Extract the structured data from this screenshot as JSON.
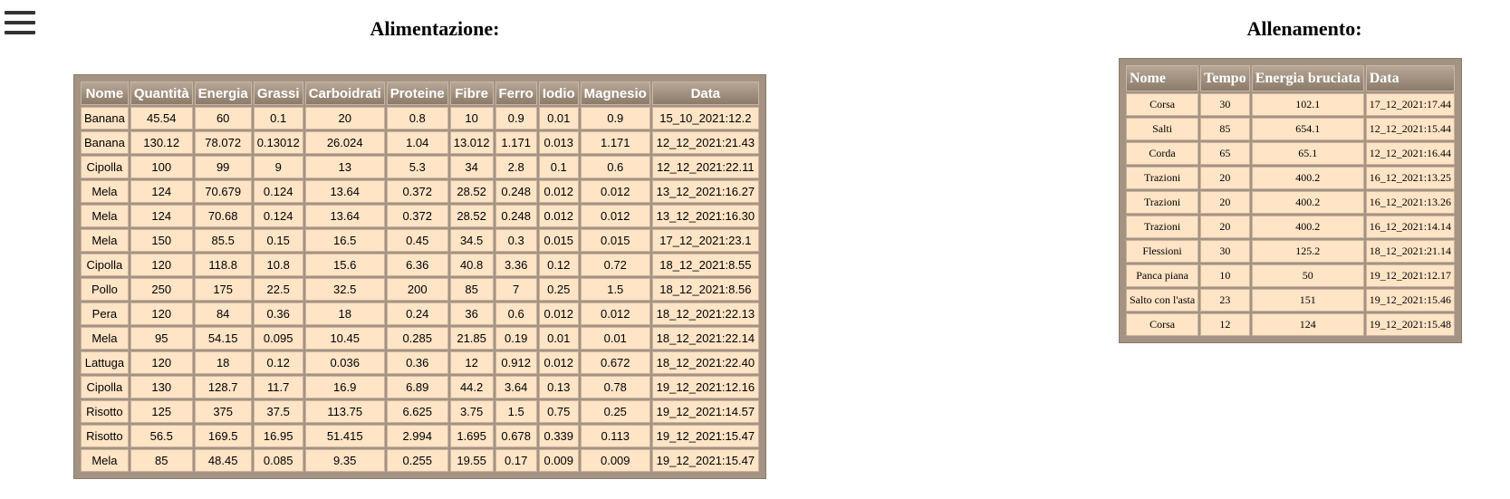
{
  "menu": {
    "icon": "hamburger-menu-icon"
  },
  "alimentazione": {
    "title": "Alimentazione:",
    "headers": [
      "Nome",
      "Quantità",
      "Energia",
      "Grassi",
      "Carboidrati",
      "Proteine",
      "Fibre",
      "Ferro",
      "Iodio",
      "Magnesio",
      "Data"
    ],
    "rows": [
      [
        "Banana",
        "45.54",
        "60",
        "0.1",
        "20",
        "0.8",
        "10",
        "0.9",
        "0.01",
        "0.9",
        "15_10_2021:12.2"
      ],
      [
        "Banana",
        "130.12",
        "78.072",
        "0.13012",
        "26.024",
        "1.04",
        "13.012",
        "1.171",
        "0.013",
        "1.171",
        "12_12_2021:21.43"
      ],
      [
        "Cipolla",
        "100",
        "99",
        "9",
        "13",
        "5.3",
        "34",
        "2.8",
        "0.1",
        "0.6",
        "12_12_2021:22.11"
      ],
      [
        "Mela",
        "124",
        "70.679",
        "0.124",
        "13.64",
        "0.372",
        "28.52",
        "0.248",
        "0.012",
        "0.012",
        "13_12_2021:16.27"
      ],
      [
        "Mela",
        "124",
        "70.68",
        "0.124",
        "13.64",
        "0.372",
        "28.52",
        "0.248",
        "0.012",
        "0.012",
        "13_12_2021:16.30"
      ],
      [
        "Mela",
        "150",
        "85.5",
        "0.15",
        "16.5",
        "0.45",
        "34.5",
        "0.3",
        "0.015",
        "0.015",
        "17_12_2021:23.1"
      ],
      [
        "Cipolla",
        "120",
        "118.8",
        "10.8",
        "15.6",
        "6.36",
        "40.8",
        "3.36",
        "0.12",
        "0.72",
        "18_12_2021:8.55"
      ],
      [
        "Pollo",
        "250",
        "175",
        "22.5",
        "32.5",
        "200",
        "85",
        "7",
        "0.25",
        "1.5",
        "18_12_2021:8.56"
      ],
      [
        "Pera",
        "120",
        "84",
        "0.36",
        "18",
        "0.24",
        "36",
        "0.6",
        "0.012",
        "0.012",
        "18_12_2021:22.13"
      ],
      [
        "Mela",
        "95",
        "54.15",
        "0.095",
        "10.45",
        "0.285",
        "21.85",
        "0.19",
        "0.01",
        "0.01",
        "18_12_2021:22.14"
      ],
      [
        "Lattuga",
        "120",
        "18",
        "0.12",
        "0.036",
        "0.36",
        "12",
        "0.912",
        "0.012",
        "0.672",
        "18_12_2021:22.40"
      ],
      [
        "Cipolla",
        "130",
        "128.7",
        "11.7",
        "16.9",
        "6.89",
        "44.2",
        "3.64",
        "0.13",
        "0.78",
        "19_12_2021:12.16"
      ],
      [
        "Risotto",
        "125",
        "375",
        "37.5",
        "113.75",
        "6.625",
        "3.75",
        "1.5",
        "0.75",
        "0.25",
        "19_12_2021:14.57"
      ],
      [
        "Risotto",
        "56.5",
        "169.5",
        "16.95",
        "51.415",
        "2.994",
        "1.695",
        "0.678",
        "0.339",
        "0.113",
        "19_12_2021:15.47"
      ],
      [
        "Mela",
        "85",
        "48.45",
        "0.085",
        "9.35",
        "0.255",
        "19.55",
        "0.17",
        "0.009",
        "0.009",
        "19_12_2021:15.47"
      ]
    ]
  },
  "allenamento": {
    "title": "Allenamento:",
    "headers": [
      "Nome",
      "Tempo",
      "Energia bruciata",
      "Data"
    ],
    "rows": [
      [
        "Corsa",
        "30",
        "102.1",
        "17_12_2021:17.44"
      ],
      [
        "Salti",
        "85",
        "654.1",
        "12_12_2021:15.44"
      ],
      [
        "Corda",
        "65",
        "65.1",
        "12_12_2021:16.44"
      ],
      [
        "Trazioni",
        "20",
        "400.2",
        "16_12_2021:13.25"
      ],
      [
        "Trazioni",
        "20",
        "400.2",
        "16_12_2021:13.26"
      ],
      [
        "Trazioni",
        "20",
        "400.2",
        "16_12_2021:14.14"
      ],
      [
        "Flessioni",
        "30",
        "125.2",
        "18_12_2021:21.14"
      ],
      [
        "Panca piana",
        "10",
        "50",
        "19_12_2021:12.17"
      ],
      [
        "Salto con l'asta",
        "23",
        "151",
        "19_12_2021:15.46"
      ],
      [
        "Corsa",
        "12",
        "124",
        "19_12_2021:15.48"
      ]
    ]
  }
}
